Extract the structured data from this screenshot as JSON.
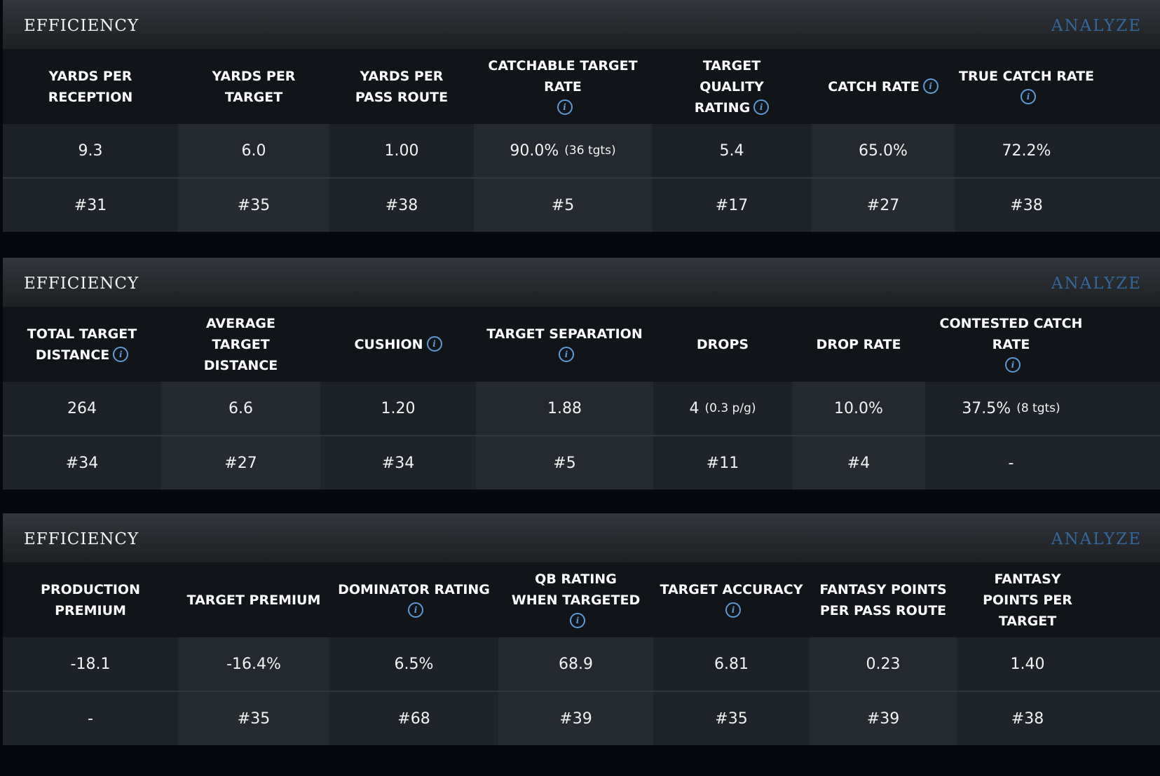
{
  "panels": [
    {
      "title": "EFFICIENCY",
      "analyze_label": "ANALYZE",
      "columns": [
        {
          "label": "YARDS PER RECEPTION",
          "value": "9.3",
          "rank": "#31"
        },
        {
          "label": "YARDS PER TARGET",
          "value": "6.0",
          "rank": "#35"
        },
        {
          "label": "YARDS PER PASS ROUTE",
          "value": "1.00",
          "rank": "#38"
        },
        {
          "label": "CATCHABLE TARGET RATE",
          "value": "90.0%",
          "extra": "(36 tgts)",
          "rank": "#5"
        },
        {
          "label": "TARGET QUALITY RATING",
          "value": "5.4",
          "rank": "#17"
        },
        {
          "label": "CATCH RATE",
          "value": "65.0%",
          "rank": "#27"
        },
        {
          "label": "TRUE CATCH RATE",
          "value": "72.2%",
          "rank": "#38"
        }
      ]
    },
    {
      "title": "EFFICIENCY",
      "analyze_label": "ANALYZE",
      "columns": [
        {
          "label": "TOTAL TARGET DISTANCE",
          "value": "264",
          "rank": "#34"
        },
        {
          "label": "AVERAGE TARGET DISTANCE",
          "value": "6.6",
          "rank": "#27"
        },
        {
          "label": "CUSHION",
          "value": "1.20",
          "rank": "#34"
        },
        {
          "label": "TARGET SEPARATION",
          "value": "1.88",
          "rank": "#5"
        },
        {
          "label": "DROPS",
          "value": "4",
          "extra": "(0.3 p/g)",
          "rank": "#11"
        },
        {
          "label": "DROP RATE",
          "value": "10.0%",
          "rank": "#4"
        },
        {
          "label": "CONTESTED CATCH RATE",
          "value": "37.5%",
          "extra": "(8 tgts)",
          "rank": "-"
        }
      ]
    },
    {
      "title": "EFFICIENCY",
      "analyze_label": "ANALYZE",
      "columns": [
        {
          "label": "PRODUCTION PREMIUM",
          "value": "-18.1",
          "rank": "-"
        },
        {
          "label": "TARGET PREMIUM",
          "value": "-16.4%",
          "rank": "#35"
        },
        {
          "label": "DOMINATOR RATING",
          "value": "6.5%",
          "rank": "#68"
        },
        {
          "label": "QB RATING WHEN TARGETED",
          "value": "68.9",
          "rank": "#39"
        },
        {
          "label": "TARGET ACCURACY",
          "value": "6.81",
          "rank": "#35"
        },
        {
          "label": "FANTASY POINTS PER PASS ROUTE",
          "value": "0.23",
          "rank": "#39"
        },
        {
          "label": "FANTASY POINTS PER TARGET",
          "value": "1.40",
          "rank": "#38"
        }
      ]
    }
  ],
  "info_icon_glyph": "i",
  "colors": {
    "header_accent": "#35679a",
    "info_icon": "#5d9ad6",
    "value_row_bg": "#1d2228",
    "rank_row_bg": "#1f242a"
  }
}
